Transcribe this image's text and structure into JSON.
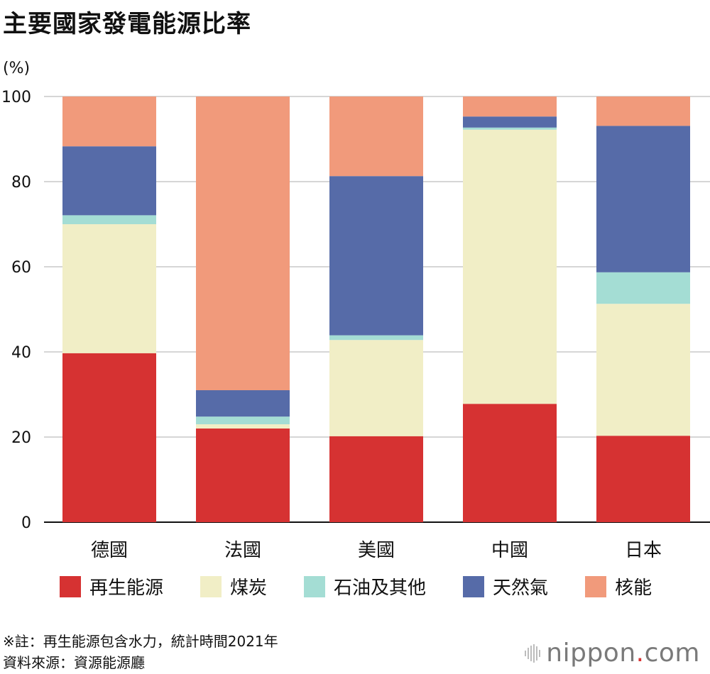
{
  "title": "主要國家發電能源比率",
  "unit_label": "(%)",
  "colors": {
    "renewable": "#d63232",
    "coal": "#f1eec6",
    "oil": "#a4ddd4",
    "gas": "#566ba8",
    "nuclear": "#f19a7b"
  },
  "chart_data": {
    "type": "bar",
    "stacked": true,
    "categories": [
      "德國",
      "法國",
      "美國",
      "中國",
      "日本"
    ],
    "series": [
      {
        "name": "再生能源",
        "color_key": "renewable",
        "values": [
          39.7,
          22.0,
          20.2,
          27.8,
          20.3
        ]
      },
      {
        "name": "煤炭",
        "color_key": "coal",
        "values": [
          30.3,
          1.0,
          22.6,
          64.4,
          31.0
        ]
      },
      {
        "name": "石油及其他",
        "color_key": "oil",
        "values": [
          2.1,
          1.8,
          1.1,
          0.5,
          7.4
        ]
      },
      {
        "name": "天然氣",
        "color_key": "gas",
        "values": [
          16.2,
          6.2,
          37.4,
          2.6,
          34.4
        ]
      },
      {
        "name": "核能",
        "color_key": "nuclear",
        "values": [
          11.7,
          69.0,
          18.7,
          4.7,
          6.9
        ]
      }
    ],
    "yticks": [
      0,
      20,
      40,
      60,
      80,
      100
    ],
    "ylim": [
      0,
      100
    ],
    "grid": true,
    "legend_position": "bottom"
  },
  "notes": {
    "line1": "※註：再生能源包含水力，統計時間2021年",
    "line2": "資料來源：資源能源廳"
  },
  "brand": {
    "name": "nippon",
    "dot": ".",
    "suffix": "com",
    "icon": "nippon-bars-icon"
  }
}
